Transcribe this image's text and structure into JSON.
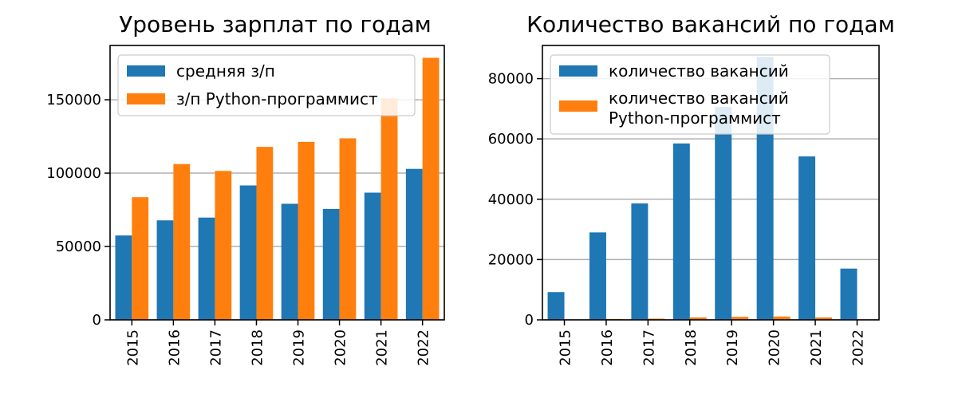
{
  "chart_data": [
    {
      "type": "bar",
      "title": "Уровень зарплат по годам",
      "xlabel": "",
      "ylabel": "",
      "categories": [
        "2015",
        "2016",
        "2017",
        "2018",
        "2019",
        "2020",
        "2021",
        "2022"
      ],
      "series": [
        {
          "name": "средняя з/п",
          "color": "#1f77b4",
          "values": [
            57500,
            67800,
            69700,
            91600,
            79100,
            75600,
            86700,
            102900
          ]
        },
        {
          "name": "з/п Python-программист",
          "color": "#ff7f0e",
          "values": [
            83600,
            106200,
            101500,
            117900,
            121300,
            123700,
            151000,
            178600
          ]
        }
      ],
      "ylim": [
        0,
        187000
      ],
      "yticks": [
        0,
        50000,
        100000,
        150000
      ],
      "grid": "y",
      "legend": "upper left"
    },
    {
      "type": "bar",
      "title": "Количество вакансий по годам",
      "xlabel": "",
      "ylabel": "",
      "categories": [
        "2015",
        "2016",
        "2017",
        "2018",
        "2019",
        "2020",
        "2021",
        "2022"
      ],
      "series": [
        {
          "name": "количество вакансий",
          "color": "#1f77b4",
          "values": [
            9200,
            29000,
            38600,
            58500,
            70600,
            87200,
            54200,
            17000
          ]
        },
        {
          "name": "количество вакансий\nPython-программист",
          "color": "#ff7f0e",
          "values": [
            0,
            300,
            400,
            800,
            1000,
            1100,
            800,
            0
          ]
        }
      ],
      "ylim": [
        0,
        91000
      ],
      "yticks": [
        0,
        20000,
        40000,
        60000,
        80000
      ],
      "grid": "y",
      "legend": "upper left"
    }
  ]
}
